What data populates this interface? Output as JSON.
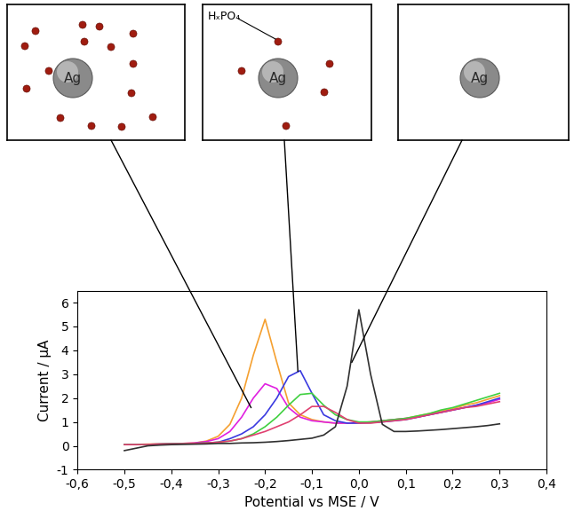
{
  "chart_data": {
    "type": "line",
    "x": [
      -0.5,
      -0.475,
      -0.45,
      -0.425,
      -0.4,
      -0.375,
      -0.35,
      -0.325,
      -0.3,
      -0.275,
      -0.25,
      -0.225,
      -0.2,
      -0.175,
      -0.15,
      -0.125,
      -0.1,
      -0.075,
      -0.05,
      -0.025,
      0.0,
      0.025,
      0.05,
      0.075,
      0.1,
      0.125,
      0.15,
      0.175,
      0.2,
      0.225,
      0.25,
      0.275,
      0.3
    ],
    "series": [
      {
        "color": "#f5a030",
        "values": [
          0.05,
          0.06,
          0.07,
          0.08,
          0.1,
          0.1,
          0.12,
          0.2,
          0.4,
          0.9,
          2.0,
          3.8,
          5.3,
          3.5,
          1.8,
          1.3,
          1.1,
          1.0,
          0.95,
          0.95,
          0.97,
          1.0,
          1.05,
          1.1,
          1.15,
          1.25,
          1.35,
          1.45,
          1.55,
          1.7,
          1.8,
          1.95,
          2.1
        ]
      },
      {
        "color": "#e020e0",
        "values": [
          0.05,
          0.05,
          0.06,
          0.07,
          0.08,
          0.1,
          0.12,
          0.18,
          0.3,
          0.6,
          1.2,
          2.0,
          2.6,
          2.4,
          1.6,
          1.2,
          1.05,
          1.0,
          0.95,
          0.95,
          0.97,
          1.0,
          1.05,
          1.1,
          1.15,
          1.2,
          1.3,
          1.4,
          1.5,
          1.6,
          1.7,
          1.8,
          1.95
        ]
      },
      {
        "color": "#3a3ae0",
        "values": [
          0.05,
          0.05,
          0.06,
          0.07,
          0.08,
          0.09,
          0.1,
          0.12,
          0.15,
          0.3,
          0.5,
          0.8,
          1.3,
          2.0,
          2.9,
          3.15,
          2.2,
          1.3,
          1.05,
          0.95,
          0.95,
          0.97,
          1.0,
          1.05,
          1.1,
          1.2,
          1.3,
          1.4,
          1.5,
          1.6,
          1.7,
          1.85,
          2.0
        ]
      },
      {
        "color": "#40d040",
        "values": [
          0.05,
          0.05,
          0.06,
          0.07,
          0.08,
          0.09,
          0.1,
          0.12,
          0.15,
          0.2,
          0.3,
          0.5,
          0.8,
          1.2,
          1.7,
          2.15,
          2.2,
          1.7,
          1.3,
          1.1,
          1.0,
          1.0,
          1.05,
          1.1,
          1.15,
          1.25,
          1.35,
          1.5,
          1.6,
          1.75,
          1.9,
          2.05,
          2.2
        ]
      },
      {
        "color": "#e04070",
        "values": [
          0.05,
          0.05,
          0.06,
          0.07,
          0.08,
          0.09,
          0.1,
          0.12,
          0.15,
          0.2,
          0.3,
          0.45,
          0.6,
          0.8,
          1.0,
          1.3,
          1.65,
          1.65,
          1.4,
          1.1,
          0.95,
          0.95,
          1.0,
          1.05,
          1.1,
          1.2,
          1.3,
          1.4,
          1.5,
          1.6,
          1.65,
          1.75,
          1.85
        ]
      },
      {
        "color": "#303030",
        "values": [
          -0.2,
          -0.1,
          0.0,
          0.03,
          0.05,
          0.06,
          0.07,
          0.08,
          0.1,
          0.1,
          0.12,
          0.13,
          0.15,
          0.18,
          0.22,
          0.27,
          0.32,
          0.45,
          0.8,
          2.5,
          5.7,
          3.0,
          0.9,
          0.6,
          0.6,
          0.62,
          0.65,
          0.68,
          0.72,
          0.76,
          0.8,
          0.85,
          0.92
        ]
      }
    ],
    "xlabel": "Potential vs MSE / V",
    "ylabel": "Current / µA",
    "xlim": [
      -0.6,
      0.4
    ],
    "xticks": [
      {
        "value": -0.6,
        "label": "-0,6"
      },
      {
        "value": -0.5,
        "label": "-0,5"
      },
      {
        "value": -0.4,
        "label": "-0,4"
      },
      {
        "value": -0.3,
        "label": "-0,3"
      },
      {
        "value": -0.2,
        "label": "-0,2"
      },
      {
        "value": -0.1,
        "label": "-0,1"
      },
      {
        "value": 0.0,
        "label": "0,0"
      },
      {
        "value": 0.1,
        "label": "0,1"
      },
      {
        "value": 0.2,
        "label": "0,2"
      },
      {
        "value": 0.3,
        "label": "0,3"
      },
      {
        "value": 0.4,
        "label": "0,4"
      }
    ],
    "ylim": [
      -1,
      6.5
    ],
    "yticks": [
      -1,
      0,
      1,
      2,
      3,
      4,
      5,
      6
    ]
  },
  "insets": [
    {
      "label": "Ag"
    },
    {
      "label": "Ag",
      "annotation": "HₓPO₄"
    },
    {
      "label": "Ag"
    }
  ]
}
